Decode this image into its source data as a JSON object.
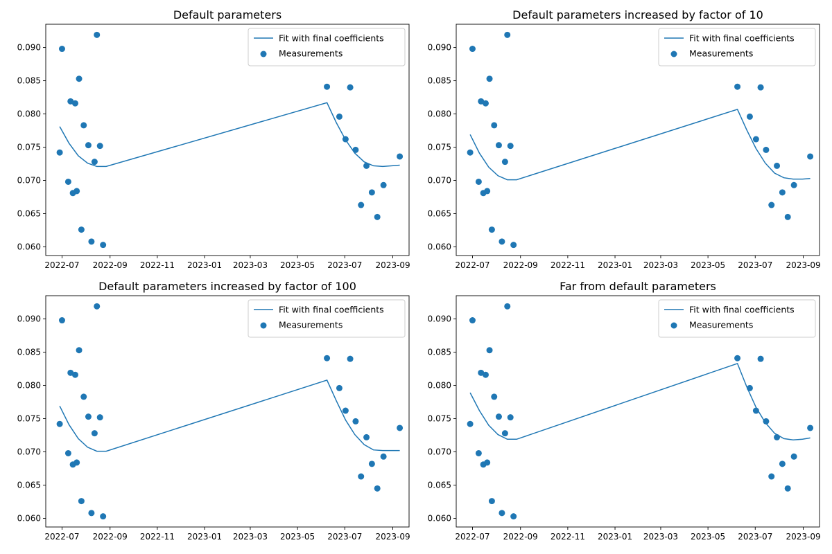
{
  "chart_data": [
    {
      "type": "scatter",
      "title": "Default parameters",
      "xlabel": "",
      "ylabel": "",
      "xlim": [
        "2022-06-10",
        "2023-09-22"
      ],
      "ylim": [
        0.0587,
        0.0935
      ],
      "x_ticks": [
        "2022-07",
        "2022-09",
        "2022-11",
        "2023-01",
        "2023-03",
        "2023-05",
        "2023-07",
        "2023-09"
      ],
      "y_ticks": [
        "0.060",
        "0.065",
        "0.070",
        "0.075",
        "0.080",
        "0.085",
        "0.090"
      ],
      "grid": false,
      "legend": {
        "position": "top-right",
        "entries": [
          "Fit with final coefficients",
          "Measurements"
        ]
      },
      "series": [
        {
          "name": "Measurements",
          "kind": "scatter",
          "color": "#1f77b4",
          "points": [
            [
              "2022-06-28",
              0.0742
            ],
            [
              "2022-07-01",
              0.0898
            ],
            [
              "2022-07-09",
              0.0698
            ],
            [
              "2022-07-12",
              0.0819
            ],
            [
              "2022-07-15",
              0.0681
            ],
            [
              "2022-07-18",
              0.0816
            ],
            [
              "2022-07-20",
              0.0684
            ],
            [
              "2022-07-23",
              0.0853
            ],
            [
              "2022-07-26",
              0.0626
            ],
            [
              "2022-07-29",
              0.0783
            ],
            [
              "2022-08-04",
              0.0753
            ],
            [
              "2022-08-08",
              0.0608
            ],
            [
              "2022-08-12",
              0.0728
            ],
            [
              "2022-08-15",
              0.0919
            ],
            [
              "2022-08-19",
              0.0752
            ],
            [
              "2022-08-23",
              0.0603
            ],
            [
              "2023-06-08",
              0.0841
            ],
            [
              "2023-06-24",
              0.0796
            ],
            [
              "2023-07-02",
              0.0762
            ],
            [
              "2023-07-08",
              0.084
            ],
            [
              "2023-07-15",
              0.0746
            ],
            [
              "2023-07-22",
              0.0663
            ],
            [
              "2023-07-29",
              0.0722
            ],
            [
              "2023-08-05",
              0.0682
            ],
            [
              "2023-08-12",
              0.0645
            ],
            [
              "2023-08-20",
              0.0693
            ],
            [
              "2023-09-10",
              0.0736
            ]
          ]
        },
        {
          "name": "Fit with final coefficients",
          "kind": "line",
          "color": "#1f77b4",
          "points": [
            [
              "2022-06-28",
              0.0781
            ],
            [
              "2022-07-10",
              0.0756
            ],
            [
              "2022-07-22",
              0.0737
            ],
            [
              "2022-08-03",
              0.0726
            ],
            [
              "2022-08-15",
              0.0721
            ],
            [
              "2022-08-27",
              0.0721
            ],
            [
              "2023-06-08",
              0.0817
            ],
            [
              "2023-06-20",
              0.0787
            ],
            [
              "2023-07-02",
              0.0761
            ],
            [
              "2023-07-14",
              0.0741
            ],
            [
              "2023-07-26",
              0.0728
            ],
            [
              "2023-08-07",
              0.0722
            ],
            [
              "2023-08-19",
              0.0721
            ],
            [
              "2023-08-31",
              0.0722
            ],
            [
              "2023-09-10",
              0.0723
            ]
          ]
        }
      ]
    },
    {
      "type": "scatter",
      "title": "Default parameters increased by factor of 10",
      "xlabel": "",
      "ylabel": "",
      "xlim": [
        "2022-06-10",
        "2023-09-22"
      ],
      "ylim": [
        0.0587,
        0.0935
      ],
      "x_ticks": [
        "2022-07",
        "2022-09",
        "2022-11",
        "2023-01",
        "2023-03",
        "2023-05",
        "2023-07",
        "2023-09"
      ],
      "y_ticks": [
        "0.060",
        "0.065",
        "0.070",
        "0.075",
        "0.080",
        "0.085",
        "0.090"
      ],
      "grid": false,
      "legend": {
        "position": "top-right",
        "entries": [
          "Fit with final coefficients",
          "Measurements"
        ]
      },
      "series": [
        {
          "name": "Measurements",
          "kind": "scatter",
          "color": "#1f77b4",
          "points": [
            [
              "2022-06-28",
              0.0742
            ],
            [
              "2022-07-01",
              0.0898
            ],
            [
              "2022-07-09",
              0.0698
            ],
            [
              "2022-07-12",
              0.0819
            ],
            [
              "2022-07-15",
              0.0681
            ],
            [
              "2022-07-18",
              0.0816
            ],
            [
              "2022-07-20",
              0.0684
            ],
            [
              "2022-07-23",
              0.0853
            ],
            [
              "2022-07-26",
              0.0626
            ],
            [
              "2022-07-29",
              0.0783
            ],
            [
              "2022-08-04",
              0.0753
            ],
            [
              "2022-08-08",
              0.0608
            ],
            [
              "2022-08-12",
              0.0728
            ],
            [
              "2022-08-15",
              0.0919
            ],
            [
              "2022-08-19",
              0.0752
            ],
            [
              "2022-08-23",
              0.0603
            ],
            [
              "2023-06-08",
              0.0841
            ],
            [
              "2023-06-24",
              0.0796
            ],
            [
              "2023-07-02",
              0.0762
            ],
            [
              "2023-07-08",
              0.084
            ],
            [
              "2023-07-15",
              0.0746
            ],
            [
              "2023-07-22",
              0.0663
            ],
            [
              "2023-07-29",
              0.0722
            ],
            [
              "2023-08-05",
              0.0682
            ],
            [
              "2023-08-12",
              0.0645
            ],
            [
              "2023-08-20",
              0.0693
            ],
            [
              "2023-09-10",
              0.0736
            ]
          ]
        },
        {
          "name": "Fit with final coefficients",
          "kind": "line",
          "color": "#1f77b4",
          "points": [
            [
              "2022-06-28",
              0.0769
            ],
            [
              "2022-07-10",
              0.0741
            ],
            [
              "2022-07-22",
              0.072
            ],
            [
              "2022-08-03",
              0.0707
            ],
            [
              "2022-08-15",
              0.0701
            ],
            [
              "2022-08-27",
              0.0701
            ],
            [
              "2023-06-08",
              0.0807
            ],
            [
              "2023-06-20",
              0.0776
            ],
            [
              "2023-07-02",
              0.0748
            ],
            [
              "2023-07-14",
              0.0726
            ],
            [
              "2023-07-26",
              0.0711
            ],
            [
              "2023-08-07",
              0.0704
            ],
            [
              "2023-08-19",
              0.0702
            ],
            [
              "2023-08-31",
              0.0702
            ],
            [
              "2023-09-10",
              0.0703
            ]
          ]
        }
      ]
    },
    {
      "type": "scatter",
      "title": "Default parameters increased by factor of 100",
      "xlabel": "",
      "ylabel": "",
      "xlim": [
        "2022-06-10",
        "2023-09-22"
      ],
      "ylim": [
        0.0587,
        0.0935
      ],
      "x_ticks": [
        "2022-07",
        "2022-09",
        "2022-11",
        "2023-01",
        "2023-03",
        "2023-05",
        "2023-07",
        "2023-09"
      ],
      "y_ticks": [
        "0.060",
        "0.065",
        "0.070",
        "0.075",
        "0.080",
        "0.085",
        "0.090"
      ],
      "grid": false,
      "legend": {
        "position": "top-right",
        "entries": [
          "Fit with final coefficients",
          "Measurements"
        ]
      },
      "series": [
        {
          "name": "Measurements",
          "kind": "scatter",
          "color": "#1f77b4",
          "points": [
            [
              "2022-06-28",
              0.0742
            ],
            [
              "2022-07-01",
              0.0898
            ],
            [
              "2022-07-09",
              0.0698
            ],
            [
              "2022-07-12",
              0.0819
            ],
            [
              "2022-07-15",
              0.0681
            ],
            [
              "2022-07-18",
              0.0816
            ],
            [
              "2022-07-20",
              0.0684
            ],
            [
              "2022-07-23",
              0.0853
            ],
            [
              "2022-07-26",
              0.0626
            ],
            [
              "2022-07-29",
              0.0783
            ],
            [
              "2022-08-04",
              0.0753
            ],
            [
              "2022-08-08",
              0.0608
            ],
            [
              "2022-08-12",
              0.0728
            ],
            [
              "2022-08-15",
              0.0919
            ],
            [
              "2022-08-19",
              0.0752
            ],
            [
              "2022-08-23",
              0.0603
            ],
            [
              "2023-06-08",
              0.0841
            ],
            [
              "2023-06-24",
              0.0796
            ],
            [
              "2023-07-02",
              0.0762
            ],
            [
              "2023-07-08",
              0.084
            ],
            [
              "2023-07-15",
              0.0746
            ],
            [
              "2023-07-22",
              0.0663
            ],
            [
              "2023-07-29",
              0.0722
            ],
            [
              "2023-08-05",
              0.0682
            ],
            [
              "2023-08-12",
              0.0645
            ],
            [
              "2023-08-20",
              0.0693
            ],
            [
              "2023-09-10",
              0.0736
            ]
          ]
        },
        {
          "name": "Fit with final coefficients",
          "kind": "line",
          "color": "#1f77b4",
          "points": [
            [
              "2022-06-28",
              0.0769
            ],
            [
              "2022-07-10",
              0.0741
            ],
            [
              "2022-07-22",
              0.072
            ],
            [
              "2022-08-03",
              0.0707
            ],
            [
              "2022-08-15",
              0.0701
            ],
            [
              "2022-08-27",
              0.0701
            ],
            [
              "2023-06-08",
              0.0808
            ],
            [
              "2023-06-20",
              0.0777
            ],
            [
              "2023-07-02",
              0.0748
            ],
            [
              "2023-07-14",
              0.0726
            ],
            [
              "2023-07-26",
              0.0711
            ],
            [
              "2023-08-07",
              0.0703
            ],
            [
              "2023-08-19",
              0.0702
            ],
            [
              "2023-08-31",
              0.0702
            ],
            [
              "2023-09-10",
              0.0702
            ]
          ]
        }
      ]
    },
    {
      "type": "scatter",
      "title": "Far from default parameters",
      "xlabel": "",
      "ylabel": "",
      "xlim": [
        "2022-06-10",
        "2023-09-22"
      ],
      "ylim": [
        0.0587,
        0.0935
      ],
      "x_ticks": [
        "2022-07",
        "2022-09",
        "2022-11",
        "2023-01",
        "2023-03",
        "2023-05",
        "2023-07",
        "2023-09"
      ],
      "y_ticks": [
        "0.060",
        "0.065",
        "0.070",
        "0.075",
        "0.080",
        "0.085",
        "0.090"
      ],
      "grid": false,
      "legend": {
        "position": "top-right",
        "entries": [
          "Fit with final coefficients",
          "Measurements"
        ]
      },
      "series": [
        {
          "name": "Measurements",
          "kind": "scatter",
          "color": "#1f77b4",
          "points": [
            [
              "2022-06-28",
              0.0742
            ],
            [
              "2022-07-01",
              0.0898
            ],
            [
              "2022-07-09",
              0.0698
            ],
            [
              "2022-07-12",
              0.0819
            ],
            [
              "2022-07-15",
              0.0681
            ],
            [
              "2022-07-18",
              0.0816
            ],
            [
              "2022-07-20",
              0.0684
            ],
            [
              "2022-07-23",
              0.0853
            ],
            [
              "2022-07-26",
              0.0626
            ],
            [
              "2022-07-29",
              0.0783
            ],
            [
              "2022-08-04",
              0.0753
            ],
            [
              "2022-08-08",
              0.0608
            ],
            [
              "2022-08-12",
              0.0728
            ],
            [
              "2022-08-15",
              0.0919
            ],
            [
              "2022-08-19",
              0.0752
            ],
            [
              "2022-08-23",
              0.0603
            ],
            [
              "2023-06-08",
              0.0841
            ],
            [
              "2023-06-24",
              0.0796
            ],
            [
              "2023-07-02",
              0.0762
            ],
            [
              "2023-07-08",
              0.084
            ],
            [
              "2023-07-15",
              0.0746
            ],
            [
              "2023-07-22",
              0.0663
            ],
            [
              "2023-07-29",
              0.0722
            ],
            [
              "2023-08-05",
              0.0682
            ],
            [
              "2023-08-12",
              0.0645
            ],
            [
              "2023-08-20",
              0.0693
            ],
            [
              "2023-09-10",
              0.0736
            ]
          ]
        },
        {
          "name": "Fit with final coefficients",
          "kind": "line",
          "color": "#1f77b4",
          "points": [
            [
              "2022-06-28",
              0.0789
            ],
            [
              "2022-07-10",
              0.0762
            ],
            [
              "2022-07-22",
              0.074
            ],
            [
              "2022-08-03",
              0.0726
            ],
            [
              "2022-08-15",
              0.0719
            ],
            [
              "2022-08-27",
              0.0719
            ],
            [
              "2023-06-08",
              0.0833
            ],
            [
              "2023-06-20",
              0.0798
            ],
            [
              "2023-07-02",
              0.0767
            ],
            [
              "2023-07-14",
              0.0744
            ],
            [
              "2023-07-26",
              0.0728
            ],
            [
              "2023-08-07",
              0.072
            ],
            [
              "2023-08-19",
              0.0718
            ],
            [
              "2023-08-31",
              0.0719
            ],
            [
              "2023-09-10",
              0.0721
            ]
          ]
        }
      ]
    }
  ]
}
